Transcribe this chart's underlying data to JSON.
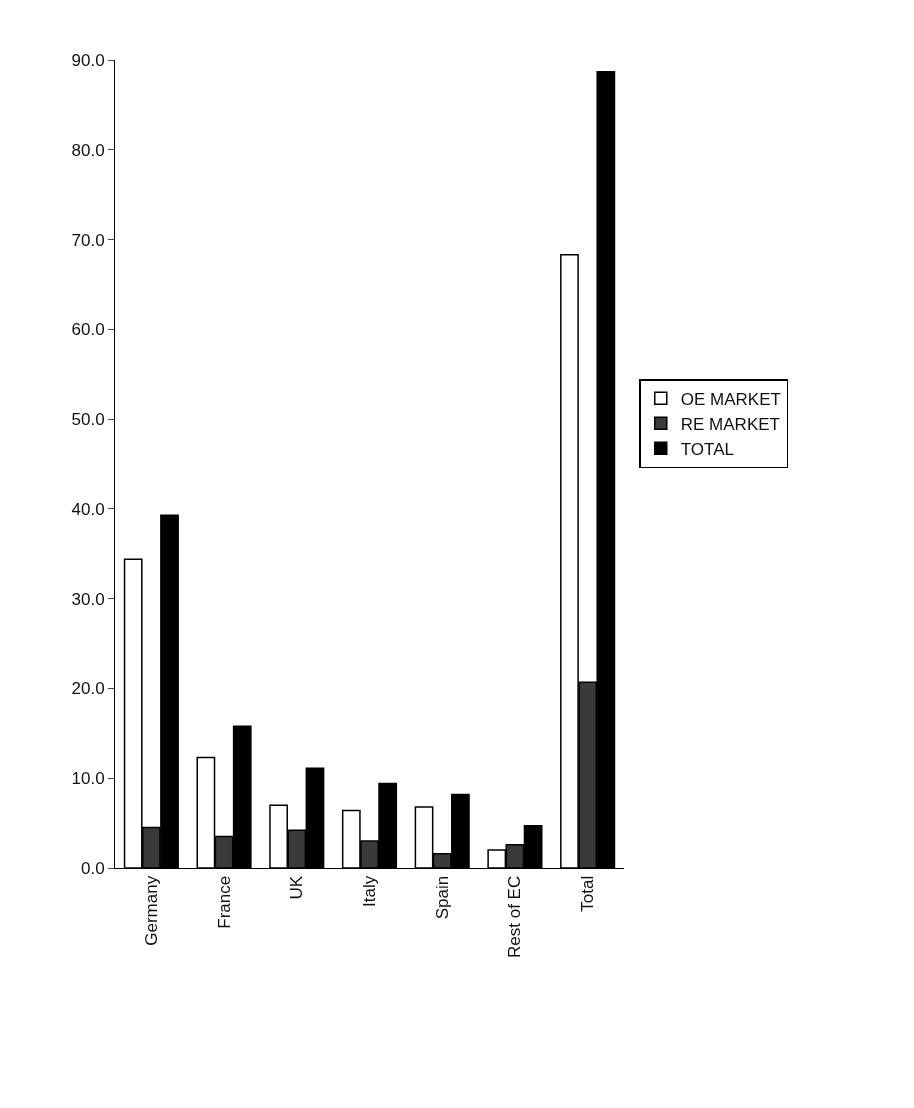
{
  "chart_data": {
    "type": "bar",
    "categories": [
      "Germany",
      "France",
      "UK",
      "Italy",
      "Spain",
      "Rest of EC",
      "Total"
    ],
    "series": [
      {
        "name": "OE MARKET",
        "color": "#ffffff",
        "values": [
          34.4,
          12.3,
          7.0,
          6.4,
          6.8,
          2.0,
          68.3
        ]
      },
      {
        "name": "RE MARKET",
        "color": "#3a3a3a",
        "values": [
          4.5,
          3.5,
          4.2,
          3.0,
          1.6,
          2.6,
          20.7
        ]
      },
      {
        "name": "TOTAL",
        "color": "#000000",
        "values": [
          39.3,
          15.8,
          11.1,
          9.4,
          8.2,
          4.7,
          88.7
        ]
      }
    ],
    "ylim": [
      0,
      90
    ],
    "yticks": [
      {
        "value": 0,
        "label": "0.0"
      },
      {
        "value": 10,
        "label": "10.0"
      },
      {
        "value": 20,
        "label": "20.0"
      },
      {
        "value": 30,
        "label": "30.0"
      },
      {
        "value": 40,
        "label": "40.0"
      },
      {
        "value": 50,
        "label": "50.0"
      },
      {
        "value": 60,
        "label": "60.0"
      },
      {
        "value": 70,
        "label": "70.0"
      },
      {
        "value": 80,
        "label": "80.0"
      },
      {
        "value": 90,
        "label": "90.0"
      }
    ],
    "legend": "right"
  }
}
